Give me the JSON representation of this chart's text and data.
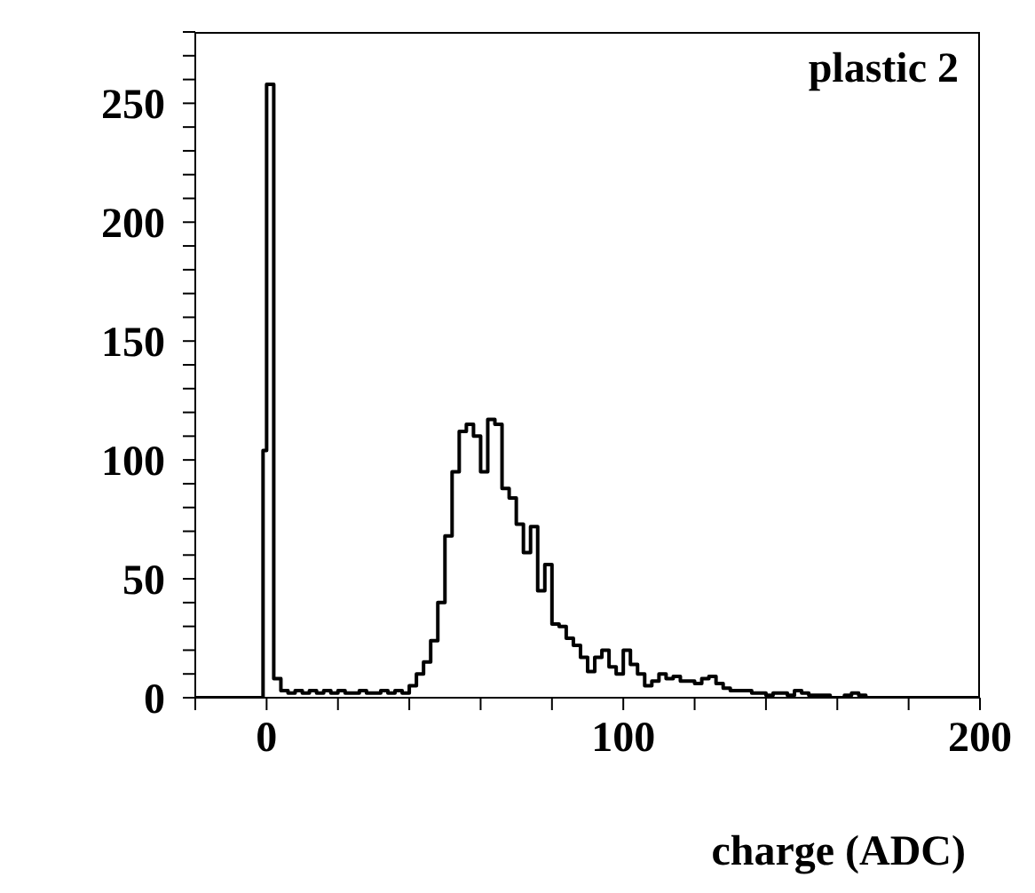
{
  "chart_data": {
    "type": "histogram",
    "title": "plastic 2",
    "xlabel": "charge (ADC)",
    "bins": [
      -20,
      -1,
      0,
      2,
      4,
      6,
      8,
      10,
      12,
      14,
      16,
      18,
      20,
      22,
      24,
      26,
      28,
      30,
      32,
      34,
      36,
      38,
      40,
      42,
      44,
      46,
      48,
      50,
      52,
      54,
      56,
      58,
      60,
      62,
      64,
      66,
      68,
      70,
      72,
      74,
      76,
      78,
      80,
      82,
      84,
      86,
      88,
      90,
      92,
      94,
      96,
      98,
      100,
      102,
      104,
      106,
      108,
      110,
      112,
      114,
      116,
      118,
      120,
      122,
      124,
      126,
      128,
      130,
      132,
      134,
      136,
      138,
      140,
      142,
      144,
      146,
      148,
      150,
      152,
      154,
      156,
      158,
      160,
      162,
      164,
      166,
      168,
      200
    ],
    "values": [
      0,
      104,
      258,
      8,
      3,
      2,
      3,
      2,
      3,
      2,
      3,
      2,
      3,
      2,
      2,
      3,
      2,
      2,
      3,
      2,
      3,
      2,
      5,
      10,
      15,
      24,
      40,
      68,
      95,
      112,
      115,
      110,
      95,
      117,
      115,
      88,
      84,
      73,
      61,
      72,
      45,
      56,
      31,
      30,
      25,
      22,
      17,
      11,
      17,
      20,
      13,
      10,
      20,
      14,
      10,
      5,
      7,
      10,
      8,
      9,
      7,
      7,
      6,
      8,
      9,
      6,
      4,
      3,
      3,
      3,
      2,
      2,
      1,
      2,
      2,
      1,
      3,
      2,
      1,
      1,
      1,
      0,
      0,
      1,
      2,
      1,
      0
    ],
    "color": "#000000",
    "xlim": [
      -20,
      200
    ],
    "xticks": [
      {
        "value": -20,
        "label": null
      },
      0,
      {
        "value": 20,
        "label": null
      },
      {
        "value": 40,
        "label": null
      },
      {
        "value": 60,
        "label": null
      },
      {
        "value": 80,
        "label": null
      },
      100,
      {
        "value": 120,
        "label": null
      },
      {
        "value": 140,
        "label": null
      },
      {
        "value": 160,
        "label": null
      },
      {
        "value": 180,
        "label": null
      },
      200
    ],
    "ylim": [
      0,
      280
    ],
    "yticks": [
      0,
      {
        "value": 10,
        "label": null
      },
      {
        "value": 20,
        "label": null
      },
      {
        "value": 30,
        "label": null
      },
      {
        "value": 40,
        "label": null
      },
      50,
      {
        "value": 60,
        "label": null
      },
      {
        "value": 70,
        "label": null
      },
      {
        "value": 80,
        "label": null
      },
      {
        "value": 90,
        "label": null
      },
      100,
      {
        "value": 110,
        "label": null
      },
      {
        "value": 120,
        "label": null
      },
      {
        "value": 130,
        "label": null
      },
      {
        "value": 140,
        "label": null
      },
      150,
      {
        "value": 160,
        "label": null
      },
      {
        "value": 170,
        "label": null
      },
      {
        "value": 180,
        "label": null
      },
      {
        "value": 190,
        "label": null
      },
      200,
      {
        "value": 210,
        "label": null
      },
      {
        "value": 220,
        "label": null
      },
      {
        "value": 230,
        "label": null
      },
      {
        "value": 240,
        "label": null
      },
      250,
      {
        "value": 260,
        "label": null
      },
      {
        "value": 270,
        "label": null
      },
      {
        "value": 280,
        "label": null
      }
    ]
  }
}
